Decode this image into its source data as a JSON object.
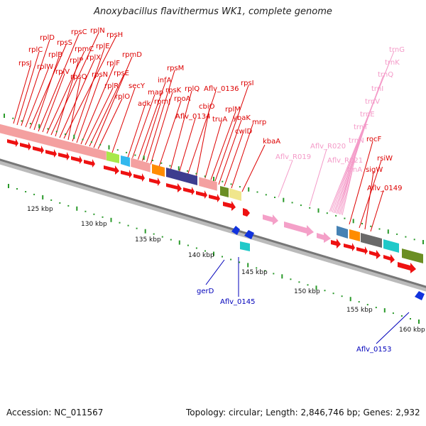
{
  "title": "Anoxybacillus flavithermus WK1, complete genome",
  "footer": {
    "accession": "Accession: NC_011567",
    "info": "Topology: circular; Length: 2,846,746 bp; Genes: 2,932"
  },
  "colors": {
    "gene_label": "#dd0000",
    "rna_label": "#f49ac8",
    "other_label": "#0000bb",
    "cds_forward": "#ee1111",
    "cds_light": "#f4a0a0",
    "rna_feature": "#f4a0c8",
    "reverse_feature": "#1133dd",
    "backbone": "#888888",
    "ticks": "#2a9a2a"
  },
  "scale_labels": [
    "125 kbp",
    "130 kbp",
    "135 kbp",
    "140 kbp",
    "145 kbp",
    "150 kbp",
    "155 kbp",
    "160 kbp"
  ],
  "upper_labels": [
    "rpsJ",
    "rplC",
    "rplD",
    "rplW",
    "rpsS",
    "rplB",
    "rpsC",
    "rplV",
    "rpmC",
    "rplN",
    "rplP",
    "rplX",
    "rpsH",
    "rpsQ",
    "rplE",
    "rpsN",
    "rplF",
    "rplR",
    "rpsE",
    "rpmD",
    "rplO",
    "secY",
    "adk",
    "map",
    "infA",
    "rpmJ",
    "rpsM",
    "rpsK",
    "rpoA",
    "rplQ",
    "Aflv_0134",
    "Aflv_0136",
    "cbiO",
    "truA",
    "rplM",
    "rpsI",
    "ybaK",
    "cwlD",
    "mrp",
    "kbaA"
  ],
  "rna_labels": [
    "Aflv_R019",
    "Aflv_R020",
    "trnG",
    "trnK",
    "trnQ",
    "trnI",
    "trnV",
    "trnE",
    "trnT",
    "trnN",
    "Aflv_R021",
    "trnA"
  ],
  "right_labels": [
    "rocF",
    "rsiW",
    "sigW",
    "Aflv_0149"
  ],
  "lower_labels": [
    "gerD",
    "Aflv_0145",
    "Aflv_0153"
  ]
}
